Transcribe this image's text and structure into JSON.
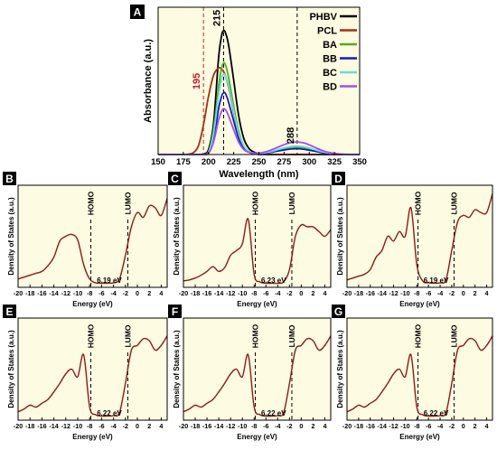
{
  "chart_data": [
    {
      "panel": "A",
      "type": "line",
      "xlabel": "Wavelength (nm)",
      "ylabel": "Absorbance (a.u.)",
      "xlim": [
        150,
        350
      ],
      "xticks": [
        150,
        175,
        200,
        225,
        250,
        275,
        300,
        325,
        350
      ],
      "ylim": [
        0,
        1.0
      ],
      "y_ticks_shown": false,
      "legend": "top-right",
      "background": "#fdfbe1",
      "annotations": [
        {
          "text": "195",
          "x": 195,
          "color": "#c0202a",
          "line_color": "#c0202a"
        },
        {
          "text": "215",
          "x": 215,
          "color": "#000000",
          "line_color": "#000000"
        },
        {
          "text": "288",
          "x": 288,
          "color": "#000000",
          "line_color": "#000000"
        }
      ],
      "x": [
        150,
        155,
        160,
        165,
        170,
        175,
        180,
        185,
        190,
        195,
        200,
        205,
        210,
        213,
        215,
        217,
        220,
        225,
        230,
        235,
        240,
        245,
        250,
        255,
        260,
        265,
        270,
        275,
        280,
        285,
        288,
        290,
        295,
        300,
        305,
        310,
        315,
        320,
        325,
        330,
        335,
        340,
        345,
        350
      ],
      "series": [
        {
          "name": "PHBV",
          "color": "#000000",
          "values": [
            0,
            0,
            0,
            0,
            0,
            0,
            0,
            0,
            0,
            0.005,
            0.04,
            0.25,
            0.78,
            0.96,
            1.0,
            0.98,
            0.88,
            0.6,
            0.31,
            0.13,
            0.05,
            0.02,
            0.01,
            0.005,
            0,
            0,
            0,
            0,
            0,
            0,
            0,
            0,
            0,
            0,
            0,
            0,
            0,
            0,
            0,
            0,
            0,
            0,
            0,
            0
          ]
        },
        {
          "name": "PCL",
          "color": "#a0301a",
          "values": [
            0,
            0,
            0,
            0,
            0,
            0,
            0.003,
            0.015,
            0.07,
            0.24,
            0.47,
            0.64,
            0.7,
            0.69,
            0.67,
            0.63,
            0.54,
            0.34,
            0.16,
            0.06,
            0.02,
            0.005,
            0,
            0,
            0,
            0,
            0,
            0,
            0,
            0,
            0,
            0,
            0,
            0,
            0,
            0,
            0,
            0,
            0,
            0,
            0,
            0,
            0,
            0
          ]
        },
        {
          "name": "BA",
          "color": "#55aa22",
          "values": [
            0,
            0,
            0,
            0,
            0,
            0,
            0,
            0,
            0,
            0.003,
            0.02,
            0.2,
            0.55,
            0.7,
            0.74,
            0.72,
            0.62,
            0.39,
            0.19,
            0.07,
            0.025,
            0.012,
            0.01,
            0.012,
            0.018,
            0.028,
            0.038,
            0.047,
            0.054,
            0.058,
            0.059,
            0.058,
            0.054,
            0.045,
            0.034,
            0.024,
            0.015,
            0.009,
            0.005,
            0.003,
            0.001,
            0,
            0,
            0
          ]
        },
        {
          "name": "BB",
          "color": "#1a1ab8",
          "values": [
            0,
            0,
            0,
            0,
            0,
            0,
            0,
            0,
            0,
            0.002,
            0.012,
            0.12,
            0.37,
            0.47,
            0.5,
            0.49,
            0.42,
            0.27,
            0.13,
            0.05,
            0.02,
            0.01,
            0.008,
            0.01,
            0.015,
            0.022,
            0.03,
            0.037,
            0.043,
            0.046,
            0.047,
            0.046,
            0.042,
            0.035,
            0.027,
            0.019,
            0.012,
            0.007,
            0.004,
            0.002,
            0.001,
            0,
            0,
            0
          ]
        },
        {
          "name": "BC",
          "color": "#66dde0",
          "values": [
            0,
            0,
            0,
            0,
            0,
            0,
            0,
            0,
            0,
            0.003,
            0.018,
            0.17,
            0.48,
            0.61,
            0.65,
            0.63,
            0.55,
            0.35,
            0.17,
            0.07,
            0.025,
            0.012,
            0.01,
            0.013,
            0.02,
            0.03,
            0.042,
            0.053,
            0.062,
            0.067,
            0.068,
            0.067,
            0.062,
            0.052,
            0.04,
            0.028,
            0.018,
            0.011,
            0.006,
            0.003,
            0.001,
            0,
            0,
            0
          ]
        },
        {
          "name": "BD",
          "color": "#a050e8",
          "values": [
            0,
            0,
            0,
            0,
            0,
            0,
            0,
            0,
            0,
            0.002,
            0.01,
            0.1,
            0.28,
            0.35,
            0.37,
            0.36,
            0.31,
            0.2,
            0.1,
            0.04,
            0.018,
            0.012,
            0.012,
            0.018,
            0.03,
            0.046,
            0.063,
            0.08,
            0.093,
            0.1,
            0.102,
            0.1,
            0.093,
            0.078,
            0.06,
            0.042,
            0.027,
            0.016,
            0.009,
            0.004,
            0.002,
            0.001,
            0,
            0
          ]
        }
      ]
    },
    {
      "panel": "B",
      "type": "line",
      "xlabel": "Energy (eV)",
      "ylabel": "Density of States (a.u.)",
      "xlim": [
        -20,
        5
      ],
      "xticks": [
        -20,
        -18,
        -16,
        -14,
        -12,
        -10,
        -8,
        -6,
        -4,
        -2,
        0,
        2,
        4
      ],
      "homo": -7.8,
      "lumo": -1.6,
      "gap_label": "6.19 eV",
      "color": "#8b1a1a",
      "x": [
        -20,
        -19,
        -18,
        -17,
        -16,
        -15,
        -14,
        -13,
        -12,
        -11,
        -10,
        -9,
        -8,
        -7,
        -6,
        -5,
        -4,
        -3,
        -2,
        -1,
        0,
        1,
        2,
        3,
        4,
        5
      ],
      "values": [
        0.05,
        0.07,
        0.09,
        0.11,
        0.13,
        0.19,
        0.28,
        0.45,
        0.5,
        0.52,
        0.46,
        0.2,
        0.05,
        0.01,
        0.005,
        0.005,
        0.01,
        0.05,
        0.3,
        0.6,
        0.75,
        0.7,
        0.82,
        0.8,
        0.72,
        0.9
      ]
    },
    {
      "panel": "C",
      "type": "line",
      "xlabel": "Energy (eV)",
      "ylabel": "Density of States (a.u.)",
      "xlim": [
        -20,
        5
      ],
      "xticks": [
        -20,
        -18,
        -16,
        -14,
        -12,
        -10,
        -8,
        -6,
        -4,
        -2,
        0,
        2,
        4
      ],
      "homo": -7.8,
      "lumo": -1.6,
      "gap_label": "6.23 eV",
      "color": "#8b1a1a",
      "x": [
        -20,
        -19,
        -18,
        -17,
        -16,
        -15,
        -14,
        -13,
        -12,
        -11,
        -10,
        -9,
        -8,
        -7,
        -6,
        -5,
        -4,
        -3,
        -2,
        -1,
        0,
        1,
        2,
        3,
        4,
        5
      ],
      "values": [
        0.03,
        0.04,
        0.06,
        0.09,
        0.13,
        0.18,
        0.13,
        0.17,
        0.3,
        0.35,
        0.42,
        0.68,
        0.1,
        0.02,
        0.005,
        0.005,
        0.005,
        0.02,
        0.15,
        0.5,
        0.62,
        0.6,
        0.6,
        0.55,
        0.5,
        0.57
      ]
    },
    {
      "panel": "D",
      "type": "line",
      "xlabel": "Energy (eV)",
      "ylabel": "Density of States (a.u.)",
      "xlim": [
        -20,
        5
      ],
      "xticks": [
        -20,
        -18,
        -16,
        -14,
        -12,
        -10,
        -8,
        -6,
        -4,
        -2,
        0,
        2,
        4
      ],
      "homo": -7.8,
      "lumo": -1.6,
      "gap_label": "6.19 eV",
      "color": "#8b1a1a",
      "x": [
        -20,
        -19,
        -18,
        -17,
        -16,
        -15,
        -14,
        -13,
        -12,
        -11,
        -10,
        -9,
        -8,
        -7,
        -6,
        -5,
        -4,
        -3,
        -2,
        -1,
        0,
        1,
        2,
        3,
        4,
        5
      ],
      "values": [
        0.04,
        0.06,
        0.08,
        0.1,
        0.15,
        0.28,
        0.35,
        0.5,
        0.45,
        0.55,
        0.5,
        0.8,
        0.2,
        0.03,
        0.01,
        0.005,
        0.01,
        0.04,
        0.35,
        0.65,
        0.72,
        0.7,
        0.78,
        0.75,
        0.75,
        0.95
      ]
    },
    {
      "panel": "E",
      "type": "line",
      "xlabel": "Energy (eV)",
      "ylabel": "Density of States (a.u.)",
      "xlim": [
        -20,
        5
      ],
      "xticks": [
        -20,
        -18,
        -16,
        -14,
        -12,
        -10,
        -8,
        -6,
        -4,
        -2,
        0,
        2,
        4
      ],
      "homo": -7.8,
      "lumo": -1.6,
      "gap_label": "6.22 eV",
      "color": "#8b1a1a",
      "x": [
        -20,
        -19,
        -18,
        -17,
        -16,
        -15,
        -14,
        -13,
        -12,
        -11,
        -10,
        -9,
        -8,
        -7,
        -6,
        -5,
        -4,
        -3,
        -2,
        -1,
        0,
        1,
        2,
        3,
        4,
        5
      ],
      "values": [
        0.05,
        0.08,
        0.12,
        0.1,
        0.14,
        0.18,
        0.26,
        0.35,
        0.45,
        0.5,
        0.42,
        0.65,
        0.1,
        0.02,
        0.005,
        0.005,
        0.01,
        0.04,
        0.35,
        0.7,
        0.75,
        0.82,
        0.8,
        0.7,
        0.75,
        0.85
      ]
    },
    {
      "panel": "F",
      "type": "line",
      "xlabel": "Energy (eV)",
      "ylabel": "Density of States (a.u.)",
      "xlim": [
        -20,
        5
      ],
      "xticks": [
        -20,
        -18,
        -16,
        -14,
        -12,
        -10,
        -8,
        -6,
        -4,
        -2,
        0,
        2,
        4
      ],
      "homo": -7.8,
      "lumo": -1.6,
      "gap_label": "6.22 eV",
      "color": "#8b1a1a",
      "x": [
        -20,
        -19,
        -18,
        -17,
        -16,
        -15,
        -14,
        -13,
        -12,
        -11,
        -10,
        -9,
        -8,
        -7,
        -6,
        -5,
        -4,
        -3,
        -2,
        -1,
        0,
        1,
        2,
        3,
        4,
        5
      ],
      "values": [
        0.05,
        0.08,
        0.12,
        0.1,
        0.14,
        0.18,
        0.26,
        0.35,
        0.45,
        0.5,
        0.42,
        0.65,
        0.1,
        0.02,
        0.005,
        0.005,
        0.01,
        0.04,
        0.35,
        0.7,
        0.75,
        0.82,
        0.8,
        0.7,
        0.75,
        0.85
      ]
    },
    {
      "panel": "G",
      "type": "line",
      "xlabel": "Energy (eV)",
      "ylabel": "Density of States (a.u.)",
      "xlim": [
        -20,
        5
      ],
      "xticks": [
        -20,
        -18,
        -16,
        -14,
        -12,
        -10,
        -8,
        -6,
        -4,
        -2,
        0,
        2,
        4
      ],
      "homo": -7.8,
      "lumo": -1.6,
      "gap_label": "6.22 eV",
      "color": "#8b1a1a",
      "x": [
        -20,
        -19,
        -18,
        -17,
        -16,
        -15,
        -14,
        -13,
        -12,
        -11,
        -10,
        -9,
        -8,
        -7,
        -6,
        -5,
        -4,
        -3,
        -2,
        -1,
        0,
        1,
        2,
        3,
        4,
        5
      ],
      "values": [
        0.05,
        0.08,
        0.12,
        0.1,
        0.14,
        0.18,
        0.26,
        0.35,
        0.45,
        0.5,
        0.42,
        0.65,
        0.1,
        0.02,
        0.005,
        0.005,
        0.01,
        0.04,
        0.35,
        0.7,
        0.75,
        0.82,
        0.8,
        0.7,
        0.75,
        0.85
      ]
    }
  ],
  "labels": {
    "homo": "HOMO",
    "lumo": "LUMO"
  },
  "colors": {
    "plot_background": "#fdfbe1",
    "panel_letter_background": "#000000",
    "panel_letter_text": "#ffffff",
    "dos_curve": "#8b1a1a",
    "annotation_red": "#c0202a"
  }
}
